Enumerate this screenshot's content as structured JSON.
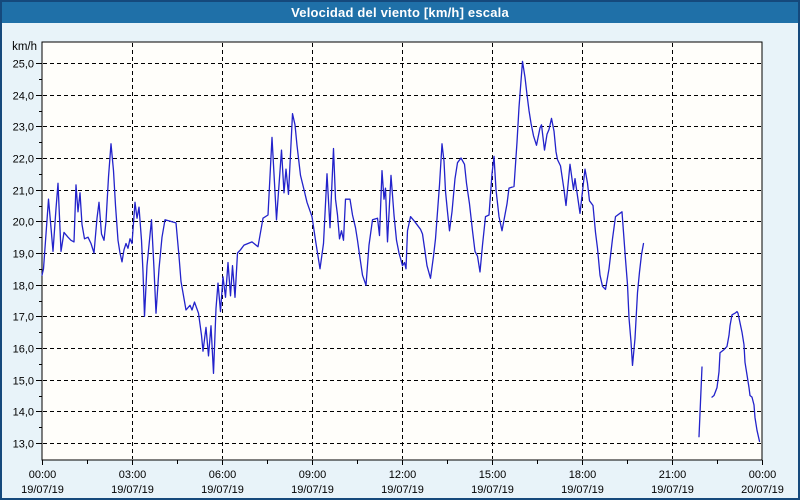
{
  "window": {
    "title": "Velocidad del viento [km/h] escala"
  },
  "colors": {
    "title_bar": "#1f70a8",
    "title_text": "#ffffff",
    "background": "#e8f3f9",
    "plot_background": "#fffefa",
    "frame": "#000000",
    "grid": "#000000",
    "tick_text": "#000000",
    "line": "#2323cb",
    "window_border": "#15497c"
  },
  "chart_data": {
    "type": "line",
    "title": "Velocidad del viento [km/h] escala",
    "y_unit_label": "km/h",
    "ylabel": "",
    "xlabel": "",
    "ylim": [
      13,
      25
    ],
    "xlim_minutes": [
      0,
      1440
    ],
    "grid": "dashed",
    "legend_position": "none",
    "y_ticks": [
      {
        "v": 25,
        "label": "25,0"
      },
      {
        "v": 24,
        "label": "24,0"
      },
      {
        "v": 23,
        "label": "23,0"
      },
      {
        "v": 22,
        "label": "22,0"
      },
      {
        "v": 21,
        "label": "21,0"
      },
      {
        "v": 20,
        "label": "20,0"
      },
      {
        "v": 19,
        "label": "19,0"
      },
      {
        "v": 18,
        "label": "18,0"
      },
      {
        "v": 17,
        "label": "17,0"
      },
      {
        "v": 16,
        "label": "16,0"
      },
      {
        "v": 15,
        "label": "15,0"
      },
      {
        "v": 14,
        "label": "14,0"
      },
      {
        "v": 13,
        "label": "13,0"
      }
    ],
    "y_minor_step": 0.5,
    "x_minor_step_minutes": 90,
    "x_ticks": [
      {
        "m": 0,
        "time": "00:00",
        "date": "19/07/19"
      },
      {
        "m": 180,
        "time": "03:00",
        "date": "19/07/19"
      },
      {
        "m": 360,
        "time": "06:00",
        "date": "19/07/19"
      },
      {
        "m": 540,
        "time": "09:00",
        "date": "19/07/19"
      },
      {
        "m": 720,
        "time": "12:00",
        "date": "19/07/19"
      },
      {
        "m": 900,
        "time": "15:00",
        "date": "19/07/19"
      },
      {
        "m": 1080,
        "time": "18:00",
        "date": "19/07/19"
      },
      {
        "m": 1260,
        "time": "21:00",
        "date": "19/07/19"
      },
      {
        "m": 1440,
        "time": "00:00",
        "date": "20/07/19"
      }
    ],
    "series": [
      {
        "name": "Velocidad del viento",
        "color": "#2323cb",
        "segments": [
          [
            [
              0,
              18.3
            ],
            [
              3,
              18.5
            ],
            [
              8,
              19.6
            ],
            [
              13,
              20.7
            ],
            [
              18,
              19.8
            ],
            [
              22,
              19.05
            ],
            [
              28,
              20.4
            ],
            [
              32,
              21.2
            ],
            [
              38,
              19.05
            ],
            [
              44,
              19.65
            ],
            [
              52,
              19.5
            ],
            [
              58,
              19.4
            ],
            [
              64,
              19.35
            ],
            [
              68,
              21.15
            ],
            [
              72,
              20.3
            ],
            [
              76,
              20.9
            ],
            [
              80,
              19.9
            ],
            [
              85,
              19.45
            ],
            [
              92,
              19.5
            ],
            [
              98,
              19.3
            ],
            [
              104,
              19.0
            ],
            [
              110,
              20.1
            ],
            [
              114,
              20.6
            ],
            [
              119,
              19.6
            ],
            [
              124,
              19.4
            ],
            [
              128,
              20.0
            ],
            [
              133,
              21.4
            ],
            [
              138,
              22.45
            ],
            [
              143,
              21.6
            ],
            [
              147,
              20.5
            ],
            [
              152,
              19.4
            ],
            [
              156,
              19.0
            ],
            [
              160,
              18.72
            ],
            [
              164,
              19.1
            ],
            [
              168,
              19.3
            ],
            [
              172,
              19.15
            ],
            [
              176,
              19.45
            ],
            [
              180,
              19.3
            ],
            [
              186,
              20.6
            ],
            [
              190,
              20.1
            ],
            [
              194,
              20.45
            ],
            [
              199,
              19.4
            ],
            [
              202,
              18.4
            ],
            [
              205,
              17.0
            ],
            [
              210,
              18.6
            ],
            [
              219,
              20.05
            ],
            [
              224,
              18.5
            ],
            [
              228,
              17.1
            ],
            [
              234,
              18.5
            ],
            [
              240,
              19.5
            ],
            [
              246,
              20.05
            ],
            [
              268,
              19.95
            ],
            [
              274,
              18.9
            ],
            [
              278,
              18.1
            ],
            [
              288,
              17.2
            ],
            [
              296,
              17.35
            ],
            [
              300,
              17.2
            ],
            [
              305,
              17.45
            ],
            [
              313,
              17.1
            ],
            [
              319,
              16.4
            ],
            [
              322,
              15.9
            ],
            [
              328,
              16.65
            ],
            [
              333,
              15.75
            ],
            [
              338,
              16.7
            ],
            [
              343,
              15.2
            ],
            [
              348,
              17.25
            ],
            [
              352,
              18.05
            ],
            [
              357,
              17.15
            ],
            [
              362,
              18.25
            ],
            [
              367,
              17.6
            ],
            [
              372,
              18.7
            ],
            [
              377,
              17.65
            ],
            [
              381,
              18.6
            ],
            [
              386,
              17.6
            ],
            [
              391,
              19.0
            ],
            [
              397,
              19.1
            ],
            [
              404,
              19.25
            ],
            [
              420,
              19.35
            ],
            [
              432,
              19.2
            ],
            [
              442,
              20.1
            ],
            [
              452,
              20.2
            ],
            [
              460,
              22.65
            ],
            [
              469,
              20.05
            ],
            [
              479,
              22.25
            ],
            [
              484,
              20.9
            ],
            [
              488,
              21.65
            ],
            [
              493,
              20.85
            ],
            [
              501,
              23.4
            ],
            [
              506,
              23.05
            ],
            [
              510,
              22.4
            ],
            [
              517,
              21.45
            ],
            [
              524,
              21.0
            ],
            [
              530,
              20.6
            ],
            [
              540,
              20.15
            ],
            [
              547,
              19.4
            ],
            [
              556,
              18.5
            ],
            [
              563,
              19.3
            ],
            [
              570,
              21.5
            ],
            [
              576,
              19.8
            ],
            [
              583,
              22.3
            ],
            [
              587,
              20.7
            ],
            [
              591,
              20.2
            ],
            [
              595,
              19.45
            ],
            [
              599,
              19.7
            ],
            [
              603,
              19.4
            ],
            [
              607,
              20.7
            ],
            [
              616,
              20.7
            ],
            [
              621,
              20.2
            ],
            [
              627,
              19.8
            ],
            [
              631,
              19.4
            ],
            [
              635,
              18.95
            ],
            [
              641,
              18.3
            ],
            [
              648,
              17.98
            ],
            [
              654,
              19.25
            ],
            [
              661,
              20.05
            ],
            [
              671,
              20.1
            ],
            [
              675,
              19.55
            ],
            [
              680,
              21.6
            ],
            [
              684,
              20.7
            ],
            [
              687,
              21.05
            ],
            [
              691,
              19.35
            ],
            [
              698,
              21.45
            ],
            [
              704,
              20.2
            ],
            [
              709,
              19.4
            ],
            [
              714,
              19.0
            ],
            [
              721,
              18.6
            ],
            [
              725,
              18.7
            ],
            [
              728,
              18.5
            ],
            [
              731,
              19.7
            ],
            [
              737,
              20.15
            ],
            [
              745,
              20.0
            ],
            [
              757,
              19.75
            ],
            [
              761,
              19.6
            ],
            [
              766,
              19.05
            ],
            [
              770,
              18.6
            ],
            [
              777,
              18.2
            ],
            [
              783,
              18.9
            ],
            [
              787,
              19.45
            ],
            [
              791,
              20.3
            ],
            [
              795,
              21.15
            ],
            [
              800,
              22.45
            ],
            [
              804,
              21.9
            ],
            [
              807,
              20.95
            ],
            [
              811,
              20.3
            ],
            [
              815,
              19.7
            ],
            [
              820,
              20.3
            ],
            [
              826,
              21.35
            ],
            [
              831,
              21.85
            ],
            [
              838,
              22.0
            ],
            [
              845,
              21.8
            ],
            [
              849,
              21.2
            ],
            [
              855,
              20.55
            ],
            [
              861,
              19.7
            ],
            [
              866,
              19.05
            ],
            [
              871,
              18.9
            ],
            [
              876,
              18.4
            ],
            [
              881,
              19.25
            ],
            [
              887,
              20.15
            ],
            [
              894,
              20.2
            ],
            [
              900,
              21.5
            ],
            [
              904,
              22.05
            ],
            [
              908,
              21.0
            ],
            [
              914,
              20.15
            ],
            [
              920,
              19.7
            ],
            [
              930,
              20.55
            ],
            [
              934,
              21.05
            ],
            [
              944,
              21.1
            ],
            [
              950,
              22.5
            ],
            [
              954,
              23.6
            ],
            [
              961,
              25.05
            ],
            [
              966,
              24.55
            ],
            [
              970,
              24.0
            ],
            [
              974,
              23.5
            ],
            [
              978,
              23.1
            ],
            [
              983,
              22.7
            ],
            [
              989,
              22.4
            ],
            [
              996,
              22.95
            ],
            [
              999,
              23.05
            ],
            [
              1005,
              22.25
            ],
            [
              1010,
              22.75
            ],
            [
              1014,
              22.9
            ],
            [
              1019,
              23.25
            ],
            [
              1024,
              22.85
            ],
            [
              1028,
              22.2
            ],
            [
              1031,
              21.95
            ],
            [
              1037,
              21.75
            ],
            [
              1044,
              21.0
            ],
            [
              1048,
              20.5
            ],
            [
              1056,
              21.8
            ],
            [
              1063,
              21.0
            ],
            [
              1066,
              21.35
            ],
            [
              1076,
              20.25
            ],
            [
              1086,
              21.65
            ],
            [
              1091,
              21.2
            ],
            [
              1095,
              20.65
            ],
            [
              1102,
              20.5
            ],
            [
              1107,
              19.65
            ],
            [
              1111,
              19.15
            ],
            [
              1116,
              18.3
            ],
            [
              1121,
              17.95
            ],
            [
              1127,
              17.85
            ],
            [
              1134,
              18.5
            ],
            [
              1141,
              19.45
            ],
            [
              1147,
              20.15
            ],
            [
              1160,
              20.3
            ],
            [
              1167,
              18.8
            ],
            [
              1171,
              18.0
            ],
            [
              1174,
              16.95
            ],
            [
              1178,
              16.2
            ],
            [
              1181,
              15.45
            ],
            [
              1186,
              16.3
            ],
            [
              1191,
              17.75
            ],
            [
              1195,
              18.4
            ],
            [
              1199,
              18.95
            ],
            [
              1203,
              19.3
            ]
          ],
          [
            [
              1314,
              13.2
            ],
            [
              1317,
              14.3
            ],
            [
              1320,
              15.4
            ]
          ],
          [
            [
              1340,
              14.45
            ],
            [
              1344,
              14.5
            ],
            [
              1350,
              14.75
            ],
            [
              1354,
              15.25
            ],
            [
              1356,
              15.85
            ],
            [
              1364,
              15.95
            ],
            [
              1370,
              16.05
            ],
            [
              1374,
              16.4
            ],
            [
              1376,
              16.7
            ],
            [
              1380,
              17.05
            ],
            [
              1386,
              17.1
            ],
            [
              1390,
              17.15
            ],
            [
              1392,
              17.1
            ],
            [
              1396,
              16.8
            ],
            [
              1400,
              16.5
            ],
            [
              1404,
              16.1
            ],
            [
              1406,
              15.55
            ],
            [
              1410,
              15.15
            ],
            [
              1414,
              14.75
            ],
            [
              1416,
              14.5
            ],
            [
              1420,
              14.45
            ],
            [
              1424,
              14.2
            ],
            [
              1426,
              13.8
            ],
            [
              1430,
              13.4
            ],
            [
              1435,
              13.05
            ]
          ]
        ]
      }
    ]
  }
}
